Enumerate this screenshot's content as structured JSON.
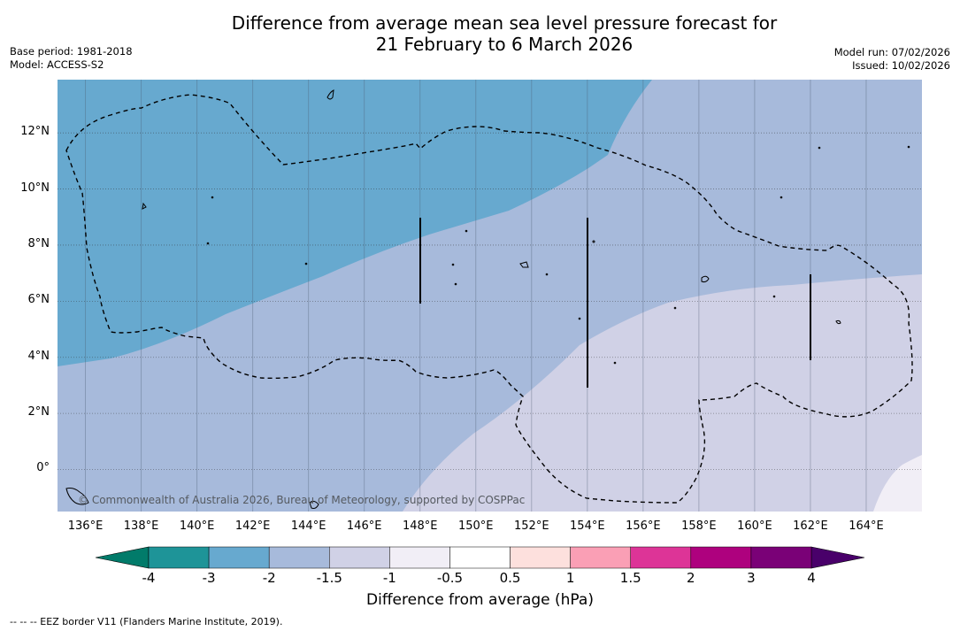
{
  "header": {
    "title_line1": "Difference from average mean sea level pressure forecast for",
    "title_line2": "21 February to 6 March 2026",
    "base_period": "Base period: 1981-2018",
    "model": "Model: ACCESS-S2",
    "model_run": "Model run: 07/02/2026",
    "issued": "Issued: 10/02/2026"
  },
  "axes": {
    "latitude_labels": [
      "12°N",
      "10°N",
      "8°N",
      "6°N",
      "4°N",
      "2°N",
      "0°"
    ],
    "latitude_values": [
      12,
      10,
      8,
      6,
      4,
      2,
      0
    ],
    "longitude_labels": [
      "136°E",
      "138°E",
      "140°E",
      "142°E",
      "144°E",
      "146°E",
      "148°E",
      "150°E",
      "152°E",
      "154°E",
      "156°E",
      "158°E",
      "160°E",
      "162°E",
      "164°E"
    ],
    "longitude_values": [
      136,
      138,
      140,
      142,
      144,
      146,
      148,
      150,
      152,
      154,
      156,
      158,
      160,
      162,
      164
    ],
    "extent": {
      "lon_min": 135,
      "lon_max": 166,
      "lat_min": -1.5,
      "lat_max": 13.9
    }
  },
  "map_overlay": {
    "copyright": "© Commonwealth of Australia 2026, Bureau of Meteorology, supported by COSPPac"
  },
  "colorbar": {
    "title": "Difference from average (hPa)",
    "tick_labels": [
      "-4",
      "-3",
      "-2",
      "-1.5",
      "-1",
      "-0.5",
      "0.5",
      "1",
      "1.5",
      "2",
      "3",
      "4"
    ],
    "colors": [
      "#1e9498",
      "#67a9cf",
      "#a7badb",
      "#d0d1e6",
      "#f1eef6",
      "#ffffff",
      "#fde0dd",
      "#fa9fb5",
      "#dd3497",
      "#ae017e",
      "#7a0177"
    ],
    "under_color": "#017b6a",
    "over_color": "#49006a"
  },
  "footnote": "--  --  -- EEZ border V11 (Flanders Marine Institute, 2019)."
}
